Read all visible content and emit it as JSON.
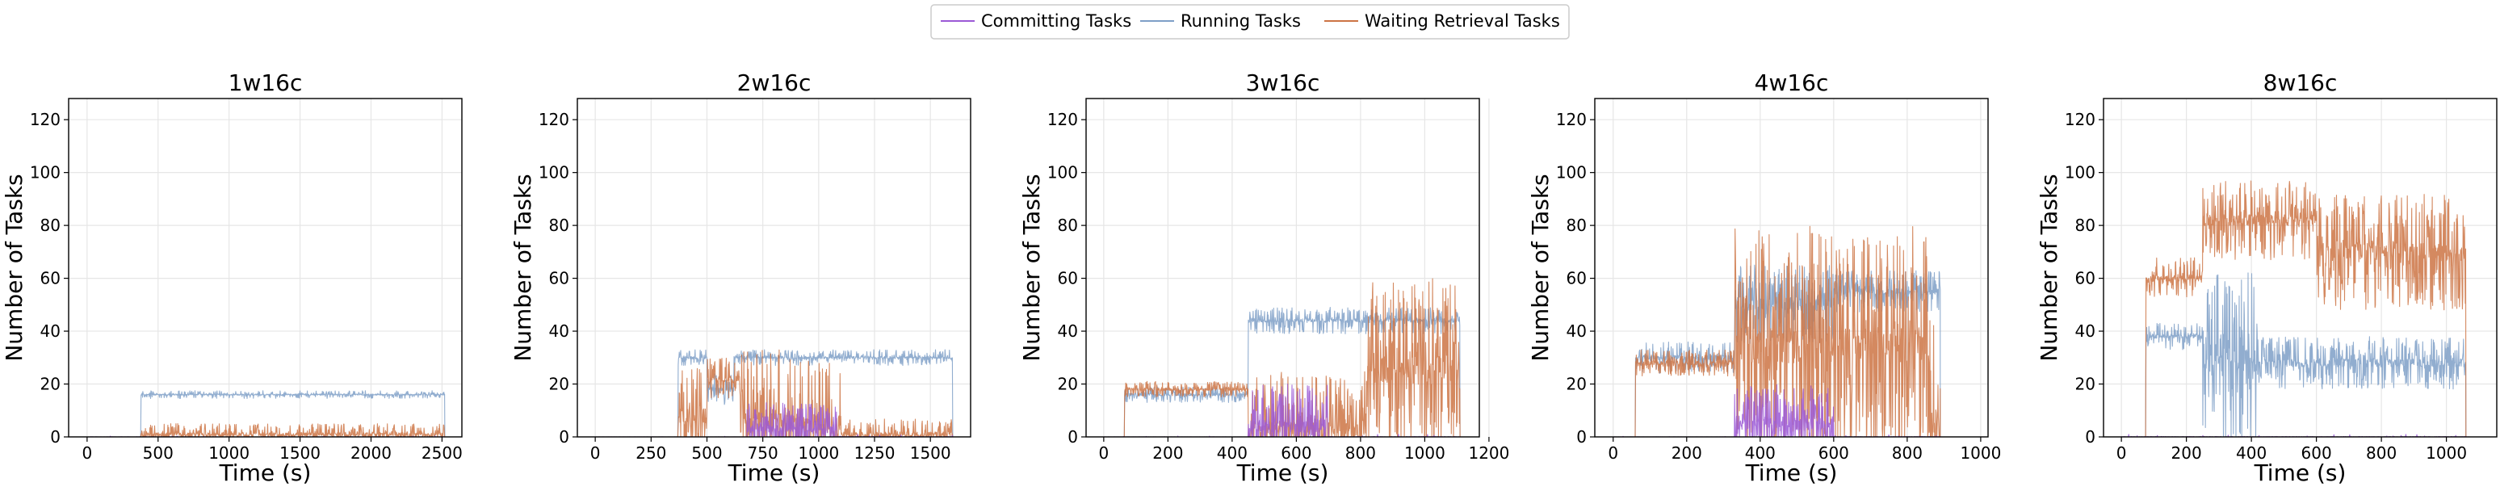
{
  "legend": {
    "placement": "top-center",
    "entries": [
      {
        "name": "Committing Tasks",
        "color": "#9b59d6"
      },
      {
        "name": "Running Tasks",
        "color": "#7e9fc7"
      },
      {
        "name": "Waiting Retrieval Tasks",
        "color": "#cc7444"
      }
    ]
  },
  "chart_data": [
    {
      "type": "line",
      "title": "1w16c",
      "xlabel": "Time (s)",
      "ylabel": "Number of Tasks",
      "xlim": [
        -130,
        2640
      ],
      "ylim": [
        0,
        128
      ],
      "xticks": [
        0,
        500,
        1000,
        1500,
        2000,
        2500
      ],
      "yticks": [
        0,
        20,
        40,
        60,
        80,
        100,
        120
      ],
      "grid": true,
      "series": [
        {
          "name": "Committing Tasks",
          "kind": "noise",
          "segments": [
            {
              "x0": 0,
              "x1": 2520,
              "base": 0,
              "amp": 0.4,
              "density": 0.02
            }
          ]
        },
        {
          "name": "Running Tasks",
          "kind": "noise",
          "segments": [
            {
              "x0": 0,
              "x1": 380,
              "base": 0,
              "amp": 0,
              "density": 0
            },
            {
              "x0": 380,
              "x1": 2520,
              "base": 16,
              "amp": 1.5,
              "density": 0.4
            }
          ]
        },
        {
          "name": "Waiting Retrieval Tasks",
          "kind": "noise",
          "segments": [
            {
              "x0": 0,
              "x1": 380,
              "base": 0,
              "amp": 0,
              "density": 0
            },
            {
              "x0": 380,
              "x1": 2520,
              "base": 1,
              "amp": 4,
              "density": 0.5
            }
          ]
        }
      ]
    },
    {
      "type": "line",
      "title": "2w16c",
      "xlabel": "Time (s)",
      "ylabel": "Number of Tasks",
      "xlim": [
        -80,
        1680
      ],
      "ylim": [
        0,
        128
      ],
      "xticks": [
        0,
        250,
        500,
        750,
        1000,
        1250,
        1500
      ],
      "yticks": [
        0,
        20,
        40,
        60,
        80,
        100,
        120
      ],
      "grid": true,
      "series": [
        {
          "name": "Committing Tasks",
          "kind": "noise",
          "segments": [
            {
              "x0": 0,
              "x1": 680,
              "base": 0,
              "amp": 0.3,
              "density": 0.02
            },
            {
              "x0": 680,
              "x1": 1080,
              "base": 3,
              "amp": 10,
              "density": 0.7
            },
            {
              "x0": 1080,
              "x1": 1600,
              "base": 0,
              "amp": 1,
              "density": 0.05
            }
          ]
        },
        {
          "name": "Running Tasks",
          "kind": "noise",
          "segments": [
            {
              "x0": 0,
              "x1": 370,
              "base": 0,
              "amp": 0,
              "density": 0
            },
            {
              "x0": 370,
              "x1": 500,
              "base": 30,
              "amp": 3,
              "density": 0.5
            },
            {
              "x0": 500,
              "x1": 620,
              "base": 18,
              "amp": 6,
              "density": 0.6
            },
            {
              "x0": 620,
              "x1": 1600,
              "base": 30,
              "amp": 3,
              "density": 0.5
            }
          ]
        },
        {
          "name": "Waiting Retrieval Tasks",
          "kind": "noise",
          "segments": [
            {
              "x0": 0,
              "x1": 370,
              "base": 0,
              "amp": 0,
              "density": 0
            },
            {
              "x0": 370,
              "x1": 500,
              "base": 8,
              "amp": 18,
              "density": 0.6
            },
            {
              "x0": 500,
              "x1": 650,
              "base": 22,
              "amp": 8,
              "density": 0.6
            },
            {
              "x0": 650,
              "x1": 1100,
              "base": 5,
              "amp": 28,
              "density": 0.6
            },
            {
              "x0": 1100,
              "x1": 1600,
              "base": 1,
              "amp": 6,
              "density": 0.5
            }
          ]
        }
      ]
    },
    {
      "type": "line",
      "title": "3w16c",
      "xlabel": "Time (s)",
      "ylabel": "Number of Tasks",
      "xlim": [
        -55,
        1170
      ],
      "ylim": [
        0,
        128
      ],
      "xticks": [
        0,
        200,
        400,
        600,
        800,
        1000,
        1200
      ],
      "yticks": [
        0,
        20,
        40,
        60,
        80,
        100,
        120
      ],
      "grid": true,
      "series": [
        {
          "name": "Committing Tasks",
          "kind": "noise",
          "segments": [
            {
              "x0": 0,
              "x1": 450,
              "base": 0,
              "amp": 0.3,
              "density": 0.02
            },
            {
              "x0": 450,
              "x1": 700,
              "base": 4,
              "amp": 16,
              "density": 0.7
            },
            {
              "x0": 700,
              "x1": 1110,
              "base": 0,
              "amp": 1,
              "density": 0.05
            }
          ]
        },
        {
          "name": "Running Tasks",
          "kind": "noise",
          "segments": [
            {
              "x0": 0,
              "x1": 65,
              "base": 0,
              "amp": 0,
              "density": 0
            },
            {
              "x0": 65,
              "x1": 450,
              "base": 16,
              "amp": 3,
              "density": 0.5
            },
            {
              "x0": 450,
              "x1": 830,
              "base": 44,
              "amp": 5,
              "density": 0.5
            },
            {
              "x0": 830,
              "x1": 1110,
              "base": 44,
              "amp": 5,
              "density": 0.5
            }
          ]
        },
        {
          "name": "Waiting Retrieval Tasks",
          "kind": "noise",
          "segments": [
            {
              "x0": 0,
              "x1": 65,
              "base": 0,
              "amp": 0,
              "density": 0
            },
            {
              "x0": 65,
              "x1": 450,
              "base": 18,
              "amp": 3,
              "density": 0.6
            },
            {
              "x0": 450,
              "x1": 820,
              "base": 3,
              "amp": 22,
              "density": 0.6
            },
            {
              "x0": 820,
              "x1": 1110,
              "base": 25,
              "amp": 35,
              "density": 0.7
            }
          ]
        }
      ]
    },
    {
      "type": "line",
      "title": "4w16c",
      "xlabel": "Time (s)",
      "ylabel": "Number of Tasks",
      "xlim": [
        -50,
        1020
      ],
      "ylim": [
        0,
        128
      ],
      "xticks": [
        0,
        200,
        400,
        600,
        800,
        1000
      ],
      "yticks": [
        0,
        20,
        40,
        60,
        80,
        100,
        120
      ],
      "grid": true,
      "series": [
        {
          "name": "Committing Tasks",
          "kind": "noise",
          "segments": [
            {
              "x0": 0,
              "x1": 330,
              "base": 0,
              "amp": 0.3,
              "density": 0.02
            },
            {
              "x0": 330,
              "x1": 600,
              "base": 5,
              "amp": 15,
              "density": 0.7
            },
            {
              "x0": 600,
              "x1": 890,
              "base": 0,
              "amp": 1,
              "density": 0.05
            }
          ]
        },
        {
          "name": "Running Tasks",
          "kind": "noise",
          "segments": [
            {
              "x0": 0,
              "x1": 60,
              "base": 0,
              "amp": 0,
              "density": 0
            },
            {
              "x0": 60,
              "x1": 330,
              "base": 30,
              "amp": 6,
              "density": 0.5
            },
            {
              "x0": 330,
              "x1": 600,
              "base": 50,
              "amp": 15,
              "density": 0.6
            },
            {
              "x0": 600,
              "x1": 890,
              "base": 55,
              "amp": 8,
              "density": 0.6
            }
          ]
        },
        {
          "name": "Waiting Retrieval Tasks",
          "kind": "noise",
          "segments": [
            {
              "x0": 0,
              "x1": 60,
              "base": 0,
              "amp": 0,
              "density": 0
            },
            {
              "x0": 60,
              "x1": 330,
              "base": 28,
              "amp": 5,
              "density": 0.6
            },
            {
              "x0": 330,
              "x1": 860,
              "base": 35,
              "amp": 45,
              "density": 0.7
            },
            {
              "x0": 860,
              "x1": 890,
              "base": 5,
              "amp": 40,
              "density": 0.6
            }
          ]
        }
      ]
    },
    {
      "type": "line",
      "title": "8w16c",
      "xlabel": "Time (s)",
      "ylabel": "Number of Tasks",
      "xlim": [
        -55,
        1155
      ],
      "ylim": [
        0,
        128
      ],
      "xticks": [
        0,
        200,
        400,
        600,
        800,
        1000
      ],
      "yticks": [
        0,
        20,
        40,
        60,
        80,
        100,
        120
      ],
      "grid": true,
      "series": [
        {
          "name": "Committing Tasks",
          "kind": "noise",
          "segments": [
            {
              "x0": 0,
              "x1": 1070,
              "base": 0,
              "amp": 1,
              "density": 0.05
            }
          ]
        },
        {
          "name": "Running Tasks",
          "kind": "noise",
          "segments": [
            {
              "x0": 0,
              "x1": 75,
              "base": 0,
              "amp": 0,
              "density": 0
            },
            {
              "x0": 75,
              "x1": 250,
              "base": 38,
              "amp": 5,
              "density": 0.5
            },
            {
              "x0": 250,
              "x1": 420,
              "base": 30,
              "amp": 35,
              "density": 0.7
            },
            {
              "x0": 420,
              "x1": 1060,
              "base": 28,
              "amp": 10,
              "density": 0.6
            }
          ]
        },
        {
          "name": "Waiting Retrieval Tasks",
          "kind": "noise",
          "segments": [
            {
              "x0": 0,
              "x1": 75,
              "base": 0,
              "amp": 0,
              "density": 0
            },
            {
              "x0": 75,
              "x1": 250,
              "base": 60,
              "amp": 8,
              "density": 0.5
            },
            {
              "x0": 250,
              "x1": 600,
              "base": 82,
              "amp": 15,
              "density": 0.6
            },
            {
              "x0": 600,
              "x1": 1060,
              "base": 70,
              "amp": 22,
              "density": 0.7
            }
          ]
        }
      ]
    }
  ]
}
